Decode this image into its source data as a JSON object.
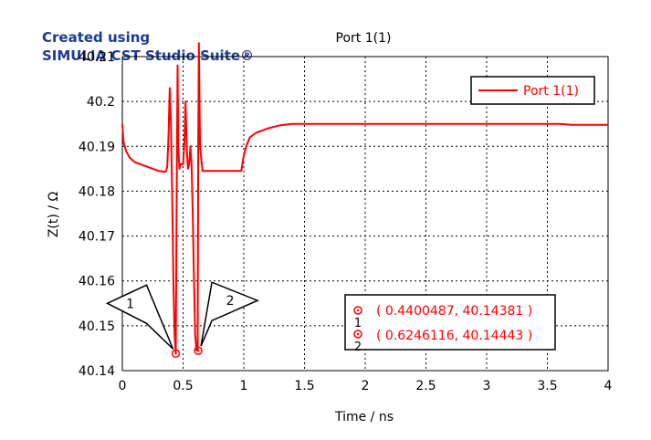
{
  "watermark": {
    "line1": "Created using",
    "line2": "SIMULIA CST Studio Suite®",
    "color": "#1f3a93"
  },
  "colors": {
    "series": "#ff0000",
    "axis": "#000000",
    "grid": "#000000",
    "text": "#000000"
  },
  "chart_data": {
    "type": "line",
    "title": "Port 1(1)",
    "xlabel": "Time / ns",
    "ylabel": "Z(t) / Ω",
    "xlim": [
      0,
      4
    ],
    "ylim": [
      40.14,
      40.21
    ],
    "xticks": [
      0,
      0.5,
      1,
      1.5,
      2,
      2.5,
      3,
      3.5,
      4
    ],
    "xtick_labels": [
      "0",
      "0.5",
      "1",
      "1.5",
      "2",
      "2.5",
      "3",
      "3.5",
      "4"
    ],
    "yticks": [
      40.14,
      40.15,
      40.16,
      40.17,
      40.18,
      40.19,
      40.2,
      40.21
    ],
    "ytick_labels": [
      "40.14",
      "40.15",
      "40.16",
      "40.17",
      "40.18",
      "40.19",
      "40.2",
      "40.21"
    ],
    "grid": true,
    "legend": {
      "position": "top-right",
      "entries": [
        "Port 1(1)"
      ]
    },
    "series": [
      {
        "name": "Port 1(1)",
        "color": "#ff0000",
        "x": [
          0,
          0.01,
          0.03,
          0.06,
          0.1,
          0.15,
          0.2,
          0.25,
          0.3,
          0.35,
          0.36,
          0.37,
          0.38,
          0.39,
          0.4,
          0.41,
          0.42,
          0.43,
          0.44,
          0.45,
          0.455,
          0.46,
          0.47,
          0.48,
          0.5,
          0.51,
          0.52,
          0.53,
          0.54,
          0.55,
          0.56,
          0.57,
          0.58,
          0.59,
          0.6,
          0.61,
          0.62,
          0.625,
          0.63,
          0.64,
          0.66,
          0.7,
          0.8,
          0.9,
          0.98,
          1.0,
          1.02,
          1.05,
          1.1,
          1.2,
          1.3,
          1.4,
          1.5,
          2.0,
          3.0,
          3.6,
          3.7,
          4.0
        ],
        "y": [
          40.195,
          40.191,
          40.189,
          40.1875,
          40.1865,
          40.186,
          40.1855,
          40.185,
          40.1845,
          40.1843,
          40.1845,
          40.1855,
          40.192,
          40.203,
          40.195,
          40.18,
          40.16,
          40.148,
          40.1438,
          40.188,
          40.208,
          40.19,
          40.185,
          40.186,
          40.186,
          40.19,
          40.2,
          40.19,
          40.185,
          40.186,
          40.19,
          40.186,
          40.175,
          40.16,
          40.148,
          40.1446,
          40.1444,
          40.19,
          40.213,
          40.19,
          40.1845,
          40.1845,
          40.1845,
          40.1845,
          40.1845,
          40.188,
          40.19,
          40.192,
          40.193,
          40.194,
          40.1947,
          40.195,
          40.195,
          40.195,
          40.195,
          40.195,
          40.1948,
          40.1948
        ]
      }
    ],
    "markers": [
      {
        "id": "1",
        "x": 0.4400487,
        "y": 40.14381,
        "text": "( 0.4400487, 40.14381 )"
      },
      {
        "id": "2",
        "x": 0.6246116,
        "y": 40.14443,
        "text": "( 0.6246116, 40.14443 )"
      }
    ]
  }
}
